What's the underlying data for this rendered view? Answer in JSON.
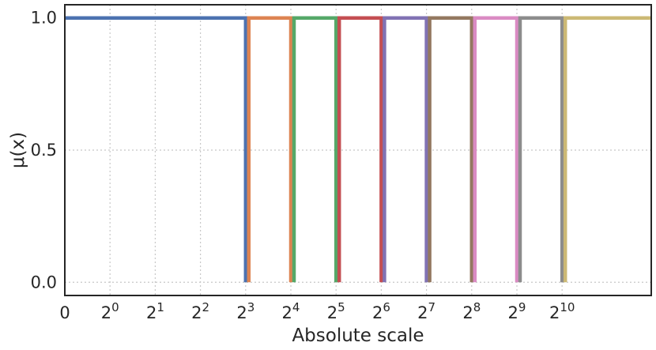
{
  "chart_data": {
    "type": "line",
    "title": "",
    "xlabel": "Absolute scale",
    "ylabel": "μ(x)",
    "x_scale": "log2",
    "x_tick_labels": [
      {
        "base": "0",
        "exp": ""
      },
      {
        "base": "2",
        "exp": "0"
      },
      {
        "base": "2",
        "exp": "1"
      },
      {
        "base": "2",
        "exp": "2"
      },
      {
        "base": "2",
        "exp": "3"
      },
      {
        "base": "2",
        "exp": "4"
      },
      {
        "base": "2",
        "exp": "5"
      },
      {
        "base": "2",
        "exp": "6"
      },
      {
        "base": "2",
        "exp": "7"
      },
      {
        "base": "2",
        "exp": "8"
      },
      {
        "base": "2",
        "exp": "9"
      },
      {
        "base": "2",
        "exp": "10"
      }
    ],
    "y_ticks": [
      0.0,
      0.5,
      1.0
    ],
    "y_tick_labels": [
      "0.0",
      "0.5",
      "1.0"
    ],
    "ylim": [
      -0.05,
      1.05
    ],
    "grid": true,
    "legend": "none",
    "series": [
      {
        "color": "#4c72b0",
        "x_start": "0",
        "x_end": 8
      },
      {
        "color": "#dd8452",
        "x_start": 8,
        "x_end": 16
      },
      {
        "color": "#55a868",
        "x_start": 16,
        "x_end": 32
      },
      {
        "color": "#c44e52",
        "x_start": 32,
        "x_end": 64
      },
      {
        "color": "#8172b3",
        "x_start": 64,
        "x_end": 128
      },
      {
        "color": "#937860",
        "x_start": 128,
        "x_end": 256
      },
      {
        "color": "#da8bc3",
        "x_start": 256,
        "x_end": 512
      },
      {
        "color": "#8c8c8c",
        "x_start": 512,
        "x_end": 1024
      },
      {
        "color": "#ccb974",
        "x_start": 1024,
        "x_end": "∞"
      }
    ],
    "series_value": 1.0
  }
}
